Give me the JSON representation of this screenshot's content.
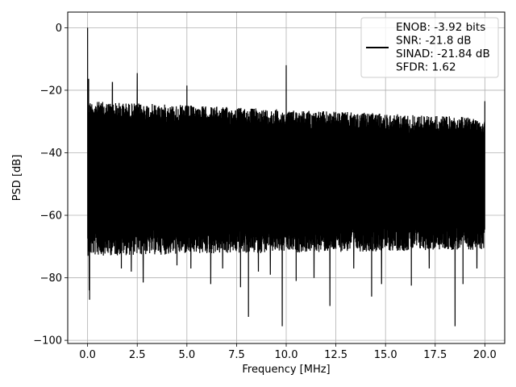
{
  "chart_data": {
    "type": "line",
    "xlabel": "Frequency [MHz]",
    "ylabel": "PSD [dB]",
    "xlim": [
      -1.0,
      21.0
    ],
    "ylim": [
      -101,
      5
    ],
    "xticks": [
      0.0,
      2.5,
      5.0,
      7.5,
      10.0,
      12.5,
      15.0,
      17.5,
      20.0
    ],
    "xtick_labels": [
      "0.0",
      "2.5",
      "5.0",
      "7.5",
      "10.0",
      "12.5",
      "15.0",
      "17.5",
      "20.0"
    ],
    "yticks": [
      0,
      -20,
      -40,
      -60,
      -80,
      -100
    ],
    "ytick_labels": [
      "0",
      "−20",
      "−40",
      "−60",
      "−80",
      "−100"
    ],
    "grid": true,
    "legend_position": "top-right",
    "line_color": "#000000",
    "legend_lines": [
      "ENOB: -3.92 bits",
      "SNR: -21.8 dB",
      "SINAD: -21.84 dB",
      "SFDR: 1.62"
    ],
    "series": [
      {
        "x_start": 0.0,
        "x_end": 20.0,
        "noise_band": {
          "upper_start": -23.5,
          "upper_end": -28.8,
          "lower_start": -71,
          "lower_end": -69
        },
        "peaks": [
          {
            "x": 0.0,
            "y": 0.0
          },
          {
            "x": 0.05,
            "y": -16.5
          },
          {
            "x": 1.25,
            "y": -17.5
          },
          {
            "x": 2.5,
            "y": -14.5
          },
          {
            "x": 5.0,
            "y": -18.5
          },
          {
            "x": 10.0,
            "y": -12.0
          },
          {
            "x": 20.0,
            "y": -23.5
          }
        ],
        "dips": [
          {
            "x": 0.08,
            "y": -84
          },
          {
            "x": 0.1,
            "y": -87
          },
          {
            "x": 1.7,
            "y": -77
          },
          {
            "x": 2.2,
            "y": -78
          },
          {
            "x": 2.8,
            "y": -81.5
          },
          {
            "x": 4.5,
            "y": -76
          },
          {
            "x": 5.2,
            "y": -77
          },
          {
            "x": 6.2,
            "y": -82
          },
          {
            "x": 6.8,
            "y": -77
          },
          {
            "x": 7.7,
            "y": -83
          },
          {
            "x": 8.1,
            "y": -92.5
          },
          {
            "x": 8.6,
            "y": -78
          },
          {
            "x": 9.2,
            "y": -79
          },
          {
            "x": 9.8,
            "y": -95.5
          },
          {
            "x": 10.5,
            "y": -81
          },
          {
            "x": 11.4,
            "y": -80
          },
          {
            "x": 12.2,
            "y": -89
          },
          {
            "x": 13.4,
            "y": -77
          },
          {
            "x": 14.3,
            "y": -86
          },
          {
            "x": 14.8,
            "y": -82
          },
          {
            "x": 16.3,
            "y": -82.5
          },
          {
            "x": 17.2,
            "y": -77
          },
          {
            "x": 18.5,
            "y": -95.5
          },
          {
            "x": 18.9,
            "y": -82
          },
          {
            "x": 19.6,
            "y": -77
          }
        ]
      }
    ]
  }
}
